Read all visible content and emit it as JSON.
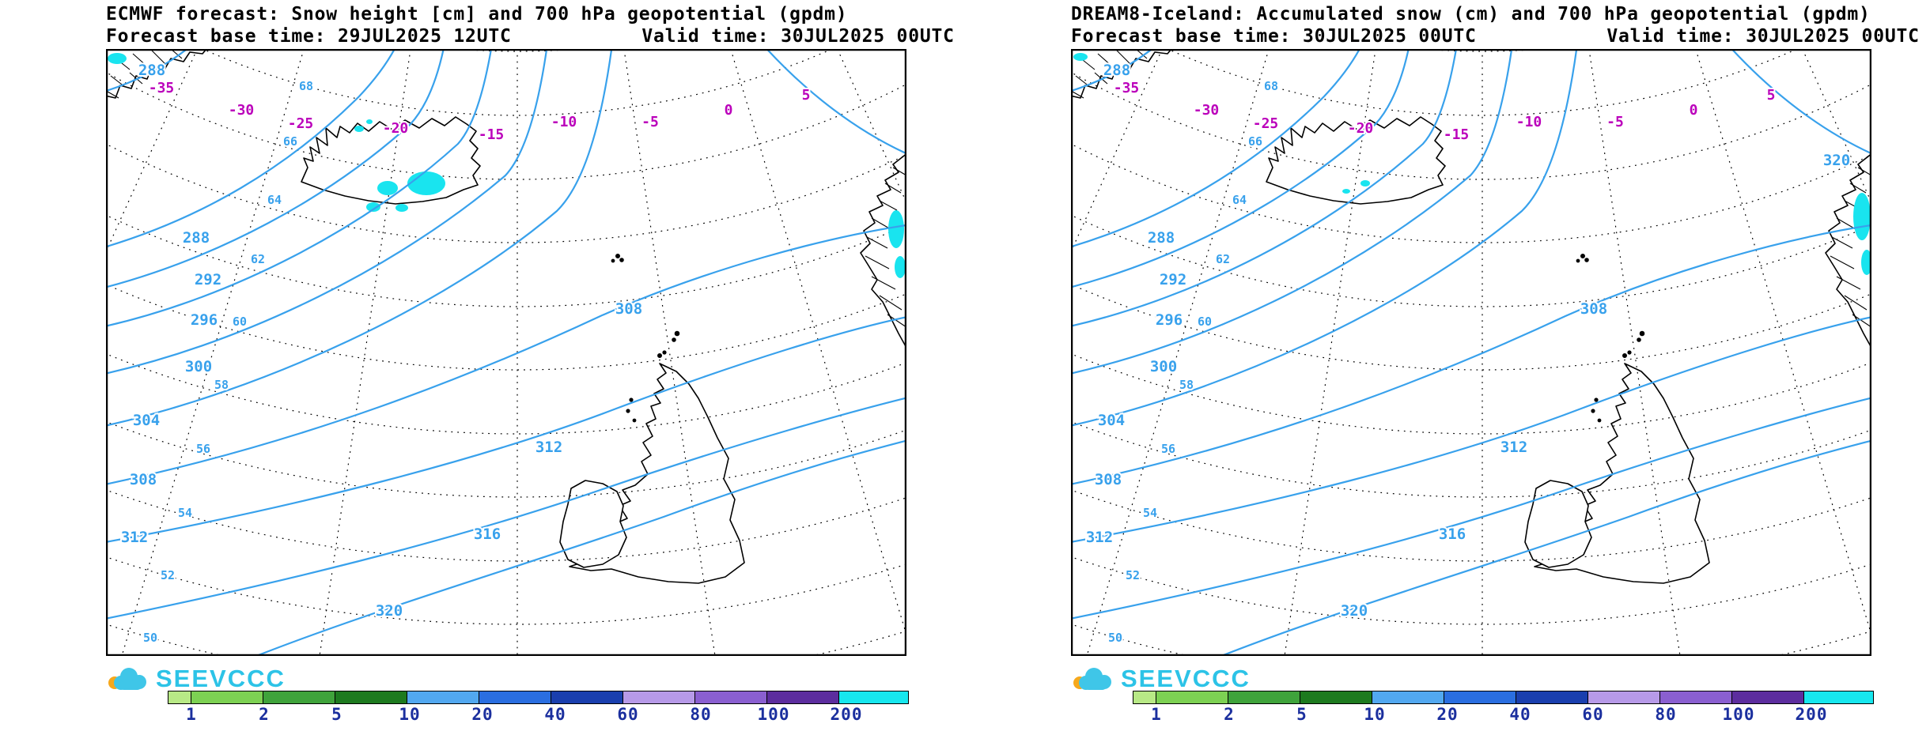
{
  "panels": [
    {
      "id": "ecmwf",
      "title": "ECMWF forecast: Snow height [cm] and 700 hPa geopotential (gpdm)",
      "base_time": "Forecast base time: 29JUL2025 12UTC",
      "valid_time": "Valid time: 30JUL2025 00UTC",
      "labels": {
        "geopotential": [
          [
            "288",
            58,
            28
          ],
          [
            "288",
            114,
            240
          ],
          [
            "292",
            129,
            293
          ],
          [
            "296",
            124,
            344
          ],
          [
            "300",
            117,
            403
          ],
          [
            "304",
            51,
            471
          ],
          [
            "308",
            47,
            546
          ],
          [
            "312",
            36,
            619
          ],
          [
            "308",
            661,
            330
          ],
          [
            "312",
            560,
            505
          ],
          [
            "316",
            482,
            615
          ],
          [
            "320",
            358,
            712
          ]
        ],
        "temperature": [
          [
            "-35",
            70,
            50
          ],
          [
            "-30",
            171,
            78
          ],
          [
            "-25",
            246,
            95
          ],
          [
            "-20",
            366,
            101
          ],
          [
            "-15",
            487,
            109
          ],
          [
            "-10",
            579,
            93
          ],
          [
            "-5",
            688,
            93
          ],
          [
            "0",
            787,
            78
          ],
          [
            "5",
            885,
            59
          ]
        ],
        "latitude": [
          [
            "68",
            253,
            47
          ],
          [
            "66",
            233,
            117
          ],
          [
            "64",
            213,
            191
          ],
          [
            "62",
            192,
            266
          ],
          [
            "60",
            169,
            345
          ],
          [
            "58",
            146,
            425
          ],
          [
            "56",
            123,
            506
          ],
          [
            "54",
            100,
            587
          ],
          [
            "52",
            78,
            666
          ],
          [
            "50",
            56,
            745
          ]
        ]
      },
      "snow_patches": [
        [
          405,
          170,
          24,
          15
        ],
        [
          356,
          176,
          13,
          9
        ],
        [
          338,
          200,
          9,
          6
        ],
        [
          374,
          201,
          8,
          5
        ],
        [
          320,
          101,
          6,
          4
        ],
        [
          333,
          92,
          4,
          3
        ],
        [
          14,
          12,
          12,
          7
        ],
        [
          999,
          228,
          10,
          24
        ],
        [
          1004,
          276,
          7,
          14
        ]
      ]
    },
    {
      "id": "dream8",
      "title": "DREAM8-Iceland: Accumulated snow (cm) and 700 hPa geopotential (gpdm)",
      "base_time": "Forecast base time: 30JUL2025 00UTC",
      "valid_time": "Valid time: 30JUL2025 00UTC",
      "labels": {
        "geopotential": [
          [
            "288",
            58,
            28
          ],
          [
            "288",
            114,
            240
          ],
          [
            "292",
            129,
            293
          ],
          [
            "296",
            124,
            344
          ],
          [
            "300",
            117,
            403
          ],
          [
            "304",
            51,
            471
          ],
          [
            "308",
            47,
            546
          ],
          [
            "312",
            36,
            619
          ],
          [
            "308",
            661,
            330
          ],
          [
            "312",
            560,
            505
          ],
          [
            "316",
            482,
            615
          ],
          [
            "320",
            358,
            712
          ],
          [
            "320",
            968,
            142
          ]
        ],
        "temperature": [
          [
            "-35",
            70,
            50
          ],
          [
            "-30",
            171,
            78
          ],
          [
            "-25",
            246,
            95
          ],
          [
            "-20",
            366,
            101
          ],
          [
            "-15",
            487,
            109
          ],
          [
            "-10",
            579,
            93
          ],
          [
            "-5",
            688,
            93
          ],
          [
            "0",
            787,
            78
          ],
          [
            "5",
            885,
            59
          ]
        ],
        "latitude": [
          [
            "68",
            253,
            47
          ],
          [
            "66",
            233,
            117
          ],
          [
            "64",
            213,
            191
          ],
          [
            "62",
            192,
            266
          ],
          [
            "60",
            169,
            345
          ],
          [
            "58",
            146,
            425
          ],
          [
            "56",
            123,
            506
          ],
          [
            "54",
            100,
            587
          ],
          [
            "52",
            78,
            666
          ],
          [
            "50",
            56,
            745
          ]
        ]
      },
      "snow_patches": [
        [
          372,
          170,
          6,
          4
        ],
        [
          348,
          180,
          5,
          3
        ],
        [
          12,
          10,
          9,
          5
        ],
        [
          1000,
          212,
          11,
          30
        ],
        [
          1006,
          270,
          7,
          16
        ]
      ]
    }
  ],
  "logo": {
    "text": "SEEVCCC"
  },
  "legend": {
    "ticks": [
      "1",
      "2",
      "5",
      "10",
      "20",
      "40",
      "60",
      "80",
      "100",
      "200"
    ],
    "colors": [
      "#b8e986",
      "#7dd153",
      "#3fa33b",
      "#1d7a1f",
      "#52a8f0",
      "#2a6ee0",
      "#1a3fae",
      "#b79ae8",
      "#8a5fd0",
      "#5c2d9e",
      "#17e7ee"
    ]
  },
  "colors": {
    "contour": "#38a1ec",
    "temperature": "#bb00bb",
    "snow": "#19e4ef",
    "coast": "#000000",
    "logo": "#2cc3e7",
    "legend_tick": "#1b2f9e"
  }
}
